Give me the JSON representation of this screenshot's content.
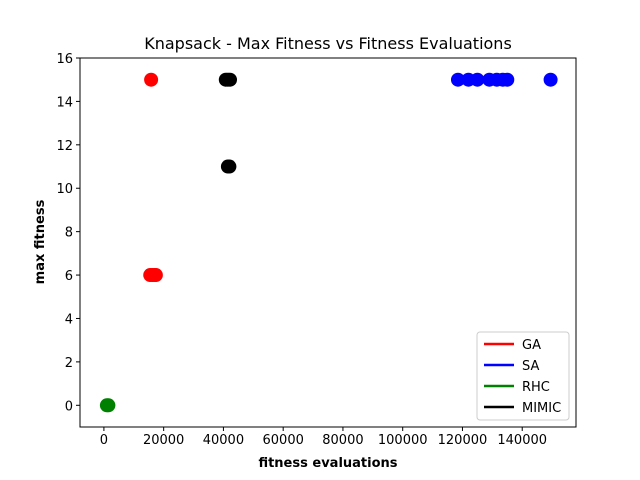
{
  "chart_data": {
    "type": "scatter",
    "title": "Knapsack - Max Fitness vs Fitness Evaluations",
    "xlabel": "fitness evaluations",
    "ylabel": "max fitness",
    "xlim": [
      -8000,
      158000
    ],
    "ylim": [
      -1,
      16
    ],
    "xticks": [
      0,
      20000,
      40000,
      60000,
      80000,
      100000,
      120000,
      140000
    ],
    "xtick_labels": [
      "0",
      "20000",
      "40000",
      "60000",
      "80000",
      "100000",
      "120000",
      "140000"
    ],
    "yticks": [
      0,
      2,
      4,
      6,
      8,
      10,
      12,
      14,
      16
    ],
    "ytick_labels": [
      "0",
      "2",
      "4",
      "6",
      "8",
      "10",
      "12",
      "14",
      "16"
    ],
    "grid": false,
    "legend_position": "lower-right",
    "series": [
      {
        "name": "GA",
        "color": "#ff0000",
        "points": [
          [
            15800,
            15
          ],
          [
            15500,
            6
          ],
          [
            16300,
            6
          ],
          [
            17000,
            6
          ],
          [
            17400,
            6
          ]
        ]
      },
      {
        "name": "SA",
        "color": "#0000ff",
        "points": [
          [
            118500,
            15
          ],
          [
            122000,
            15
          ],
          [
            125000,
            15
          ],
          [
            129000,
            15
          ],
          [
            131500,
            15
          ],
          [
            133500,
            15
          ],
          [
            135000,
            15
          ],
          [
            149500,
            15
          ]
        ]
      },
      {
        "name": "RHC",
        "color": "#008000",
        "points": [
          [
            1000,
            0
          ],
          [
            1500,
            0
          ]
        ]
      },
      {
        "name": "MIMIC",
        "color": "#000000",
        "points": [
          [
            40800,
            15
          ],
          [
            41500,
            15
          ],
          [
            42200,
            15
          ],
          [
            41500,
            11
          ],
          [
            42000,
            11
          ]
        ]
      }
    ]
  }
}
